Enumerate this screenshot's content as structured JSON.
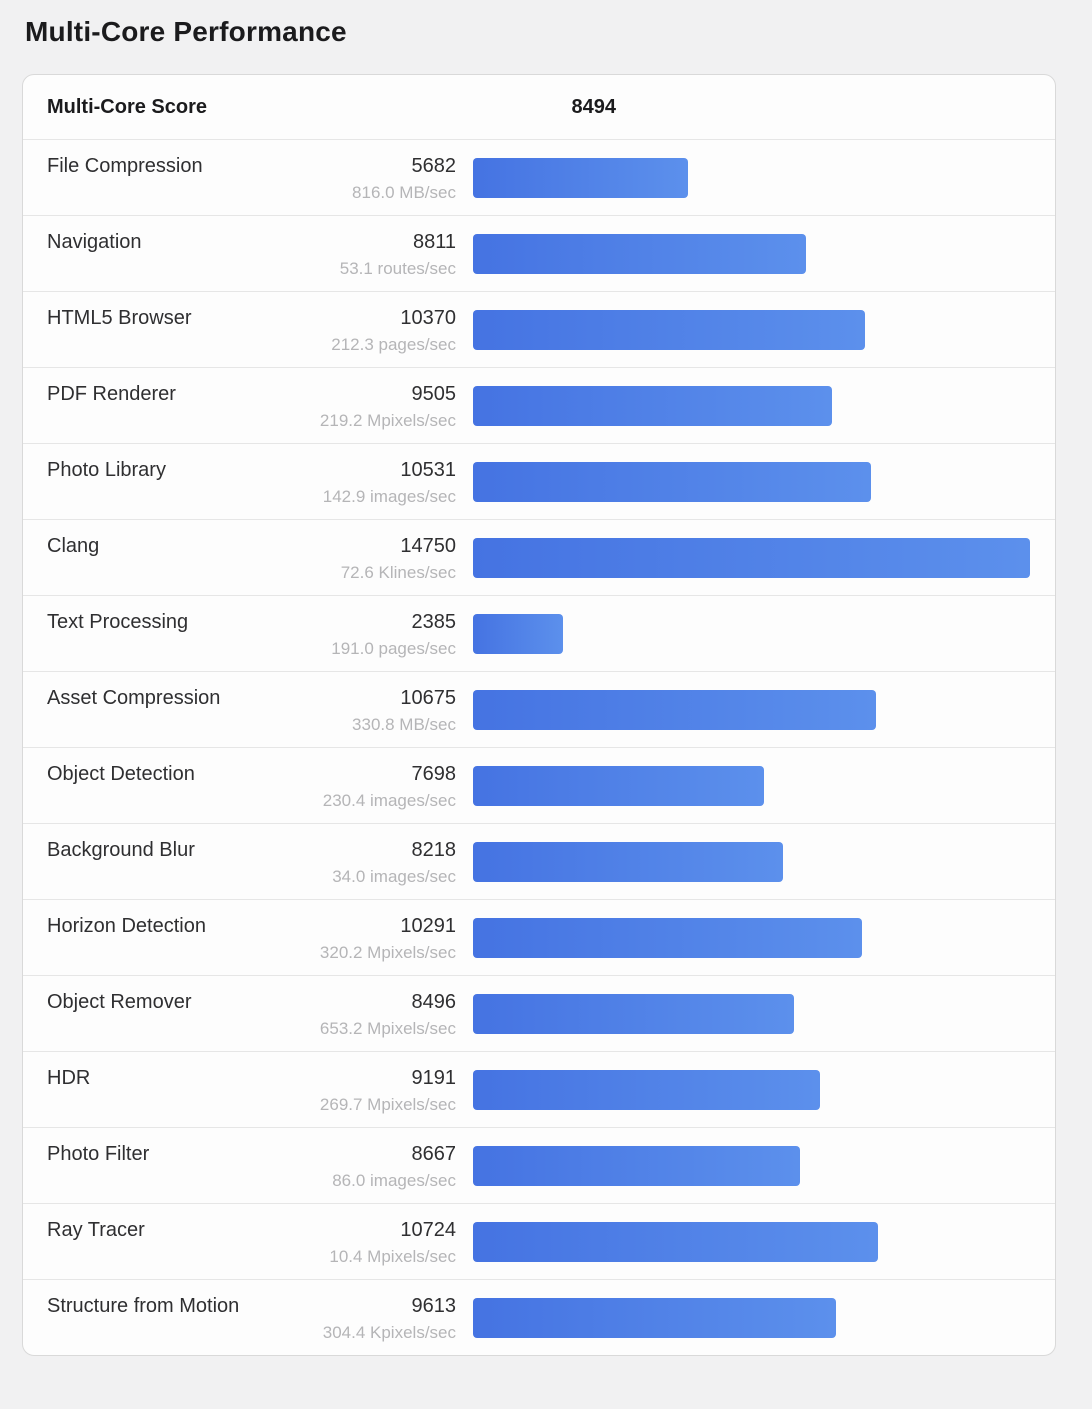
{
  "page": {
    "title": "Multi-Core Performance",
    "background_color": "#f1f1f2",
    "card_color": "#fdfdfd"
  },
  "summary": {
    "label": "Multi-Core Score",
    "value": "8494"
  },
  "rows": [
    {
      "name": "File Compression",
      "score": 5682,
      "rate": "816.0 MB/sec"
    },
    {
      "name": "Navigation",
      "score": 8811,
      "rate": "53.1 routes/sec"
    },
    {
      "name": "HTML5 Browser",
      "score": 10370,
      "rate": "212.3 pages/sec"
    },
    {
      "name": "PDF Renderer",
      "score": 9505,
      "rate": "219.2 Mpixels/sec"
    },
    {
      "name": "Photo Library",
      "score": 10531,
      "rate": "142.9 images/sec"
    },
    {
      "name": "Clang",
      "score": 14750,
      "rate": "72.6 Klines/sec"
    },
    {
      "name": "Text Processing",
      "score": 2385,
      "rate": "191.0 pages/sec"
    },
    {
      "name": "Asset Compression",
      "score": 10675,
      "rate": "330.8 MB/sec"
    },
    {
      "name": "Object Detection",
      "score": 7698,
      "rate": "230.4 images/sec"
    },
    {
      "name": "Background Blur",
      "score": 8218,
      "rate": "34.0 images/sec"
    },
    {
      "name": "Horizon Detection",
      "score": 10291,
      "rate": "320.2 Mpixels/sec"
    },
    {
      "name": "Object Remover",
      "score": 8496,
      "rate": "653.2 Mpixels/sec"
    },
    {
      "name": "HDR",
      "score": 9191,
      "rate": "269.7 Mpixels/sec"
    },
    {
      "name": "Photo Filter",
      "score": 8667,
      "rate": "86.0 images/sec"
    },
    {
      "name": "Ray Tracer",
      "score": 10724,
      "rate": "10.4 Mpixels/sec"
    },
    {
      "name": "Structure from Motion",
      "score": 9613,
      "rate": "304.4 Kpixels/sec"
    }
  ],
  "chart_data": {
    "type": "bar",
    "orientation": "horizontal",
    "title": "Multi-Core Performance",
    "subtitle": "Multi-Core Score 8494",
    "categories": [
      "File Compression",
      "Navigation",
      "HTML5 Browser",
      "PDF Renderer",
      "Photo Library",
      "Clang",
      "Text Processing",
      "Asset Compression",
      "Object Detection",
      "Background Blur",
      "Horizon Detection",
      "Object Remover",
      "HDR",
      "Photo Filter",
      "Ray Tracer",
      "Structure from Motion"
    ],
    "values": [
      5682,
      8811,
      10370,
      9505,
      10531,
      14750,
      2385,
      10675,
      7698,
      8218,
      10291,
      8496,
      9191,
      8667,
      10724,
      9613
    ],
    "value_labels": [
      "816.0 MB/sec",
      "53.1 routes/sec",
      "212.3 pages/sec",
      "219.2 Mpixels/sec",
      "142.9 images/sec",
      "72.6 Klines/sec",
      "191.0 pages/sec",
      "330.8 MB/sec",
      "230.4 images/sec",
      "34.0 images/sec",
      "320.2 Mpixels/sec",
      "653.2 Mpixels/sec",
      "269.7 Mpixels/sec",
      "86.0 images/sec",
      "10.4 Mpixels/sec",
      "304.4 Kpixels/sec"
    ],
    "xlabel": "",
    "ylabel": "",
    "xlim": [
      0,
      14750
    ],
    "grid": false,
    "legend": false,
    "bar_color_start": "#4573e2",
    "bar_color_end": "#5c90ec"
  }
}
